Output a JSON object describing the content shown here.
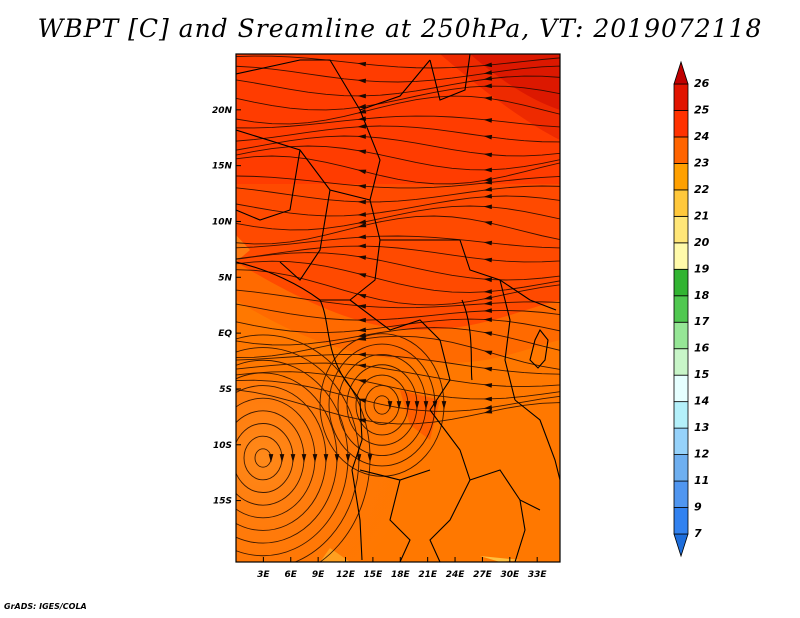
{
  "title": "WBPT [C] and Sreamline at 250hPa, VT: 2019072118",
  "footer": "GrADS: IGES/COLA",
  "map": {
    "lon_range": [
      0,
      35.5
    ],
    "lat_range": [
      -20.5,
      25
    ],
    "x_ticks": [
      {
        "value": 3,
        "label": "3E"
      },
      {
        "value": 6,
        "label": "6E"
      },
      {
        "value": 9,
        "label": "9E"
      },
      {
        "value": 12,
        "label": "12E"
      },
      {
        "value": 15,
        "label": "15E"
      },
      {
        "value": 18,
        "label": "18E"
      },
      {
        "value": 21,
        "label": "21E"
      },
      {
        "value": 24,
        "label": "24E"
      },
      {
        "value": 27,
        "label": "27E"
      },
      {
        "value": 30,
        "label": "30E"
      },
      {
        "value": 33,
        "label": "33E"
      }
    ],
    "y_ticks": [
      {
        "value": 20,
        "label": "20N"
      },
      {
        "value": 15,
        "label": "15N"
      },
      {
        "value": 10,
        "label": "10N"
      },
      {
        "value": 5,
        "label": "5N"
      },
      {
        "value": 0,
        "label": "EQ"
      },
      {
        "value": -5,
        "label": "5S"
      },
      {
        "value": -10,
        "label": "10S"
      },
      {
        "value": -15,
        "label": "15S"
      }
    ]
  },
  "colorbar": {
    "labels": [
      "7",
      "9",
      "11",
      "12",
      "13",
      "14",
      "15",
      "16",
      "17",
      "18",
      "19",
      "20",
      "21",
      "22",
      "23",
      "24",
      "25",
      "26"
    ],
    "colors": [
      "#1e6edc",
      "#3282f0",
      "#5096f0",
      "#6eaff0",
      "#96d2fa",
      "#b4f0fa",
      "#e6ffff",
      "#c8f5c8",
      "#96e696",
      "#50c850",
      "#32b432",
      "#fffaaa",
      "#ffe678",
      "#ffc83c",
      "#ffa000",
      "#ff6400",
      "#ff3200",
      "#e11400",
      "#c00000"
    ]
  }
}
